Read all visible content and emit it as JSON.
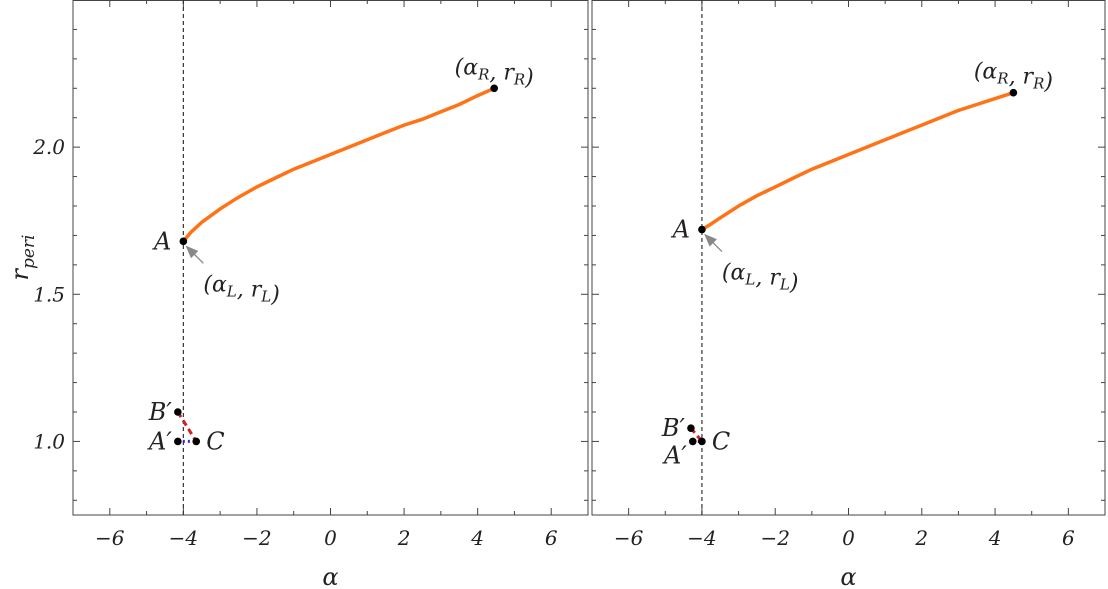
{
  "chart_data": [
    {
      "type": "line",
      "xlabel": "α",
      "ylabel": "r_peri",
      "xlim": [
        -7,
        7
      ],
      "ylim": [
        0.75,
        2.5
      ],
      "xticks": [
        -6,
        -4,
        -2,
        0,
        2,
        4,
        6
      ],
      "xtick_labels": [
        "−6",
        "−4",
        "−2",
        "0",
        "2",
        "4",
        "6"
      ],
      "yticks": [
        1.0,
        1.5,
        2.0
      ],
      "ytick_labels": [
        "1.0",
        "1.5",
        "2.0"
      ],
      "vline_x": -4,
      "curve": {
        "color": "#ff7316",
        "x": [
          -4.0,
          -3.8,
          -3.5,
          -3.0,
          -2.5,
          -2.0,
          -1.5,
          -1.0,
          -0.5,
          0.0,
          0.5,
          1.0,
          1.5,
          2.0,
          2.5,
          3.0,
          3.5,
          4.0,
          4.45
        ],
        "y": [
          1.68,
          1.71,
          1.745,
          1.79,
          1.83,
          1.865,
          1.895,
          1.925,
          1.95,
          1.975,
          2.0,
          2.025,
          2.05,
          2.075,
          2.095,
          2.12,
          2.145,
          2.175,
          2.2
        ]
      },
      "points": [
        {
          "name": "A",
          "label": "A",
          "x": -4.0,
          "y": 1.68
        },
        {
          "name": "R",
          "label": "(αR, rR)",
          "x": 4.45,
          "y": 2.2
        },
        {
          "name": "B-prime",
          "label": "B′",
          "x": -4.15,
          "y": 1.1
        },
        {
          "name": "A-prime",
          "label": "A′",
          "x": -4.15,
          "y": 1.0
        },
        {
          "name": "C",
          "label": "C",
          "x": -3.65,
          "y": 1.0
        }
      ],
      "annotation": {
        "label": "(αL, rL)",
        "target": "A"
      },
      "segments": [
        {
          "style": "red-dashed",
          "from": "B-prime",
          "to": "C"
        },
        {
          "style": "blue-dotted",
          "from": "A-prime",
          "to": "C"
        }
      ]
    },
    {
      "type": "line",
      "xlabel": "α",
      "ylabel": "",
      "xlim": [
        -7,
        7
      ],
      "ylim": [
        0.75,
        2.5
      ],
      "xticks": [
        -6,
        -4,
        -2,
        0,
        2,
        4,
        6
      ],
      "xtick_labels": [
        "−6",
        "−4",
        "−2",
        "0",
        "2",
        "4",
        "6"
      ],
      "yticks": [
        1.0,
        1.5,
        2.0
      ],
      "vline_x": -4,
      "curve": {
        "color": "#ff7316",
        "x": [
          -4.0,
          -3.8,
          -3.5,
          -3.0,
          -2.5,
          -2.0,
          -1.5,
          -1.0,
          -0.5,
          0.0,
          0.5,
          1.0,
          1.5,
          2.0,
          2.5,
          3.0,
          3.5,
          4.0,
          4.5
        ],
        "y": [
          1.72,
          1.735,
          1.76,
          1.8,
          1.835,
          1.865,
          1.895,
          1.925,
          1.95,
          1.975,
          2.0,
          2.025,
          2.05,
          2.075,
          2.1,
          2.125,
          2.145,
          2.165,
          2.185
        ]
      },
      "points": [
        {
          "name": "A",
          "label": "A",
          "x": -4.0,
          "y": 1.72
        },
        {
          "name": "R",
          "label": "(αR, rR)",
          "x": 4.5,
          "y": 2.185
        },
        {
          "name": "B-prime",
          "label": "B′",
          "x": -4.3,
          "y": 1.045
        },
        {
          "name": "A-prime",
          "label": "A′",
          "x": -4.25,
          "y": 1.0
        },
        {
          "name": "C",
          "label": "C",
          "x": -4.0,
          "y": 1.0
        }
      ],
      "annotation": {
        "label": "(αL, rL)",
        "target": "A"
      },
      "segments": [
        {
          "style": "red-dashed",
          "from": "B-prime",
          "to": "C"
        },
        {
          "style": "blue-dotted",
          "from": "A-prime",
          "to": "C"
        }
      ]
    }
  ]
}
